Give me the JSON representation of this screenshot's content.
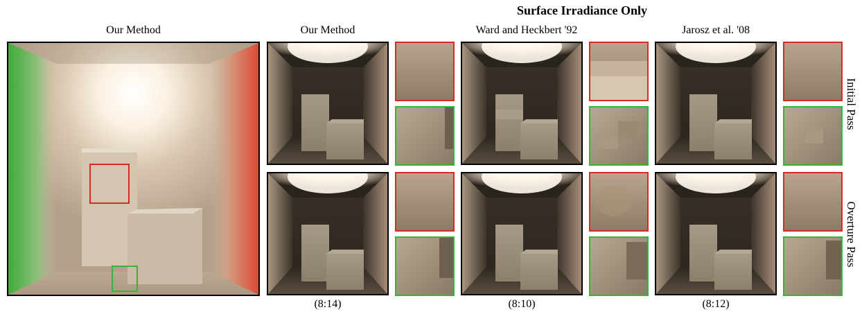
{
  "figure": {
    "title": "Surface Irradiance Only",
    "main_caption": "Our Method",
    "columns": [
      {
        "caption": "Our Method",
        "timing": "(8:14)"
      },
      {
        "caption": "Ward and Heckbert '92",
        "timing": "(8:10)"
      },
      {
        "caption": "Jarosz et al. '08",
        "timing": "(8:12)"
      }
    ],
    "rows": [
      {
        "label": "Initial Pass"
      },
      {
        "label": "Overture Pass"
      }
    ]
  },
  "colors": {
    "red_frame": "#d62a22",
    "green_frame": "#35b63a",
    "frame": "#000000"
  }
}
